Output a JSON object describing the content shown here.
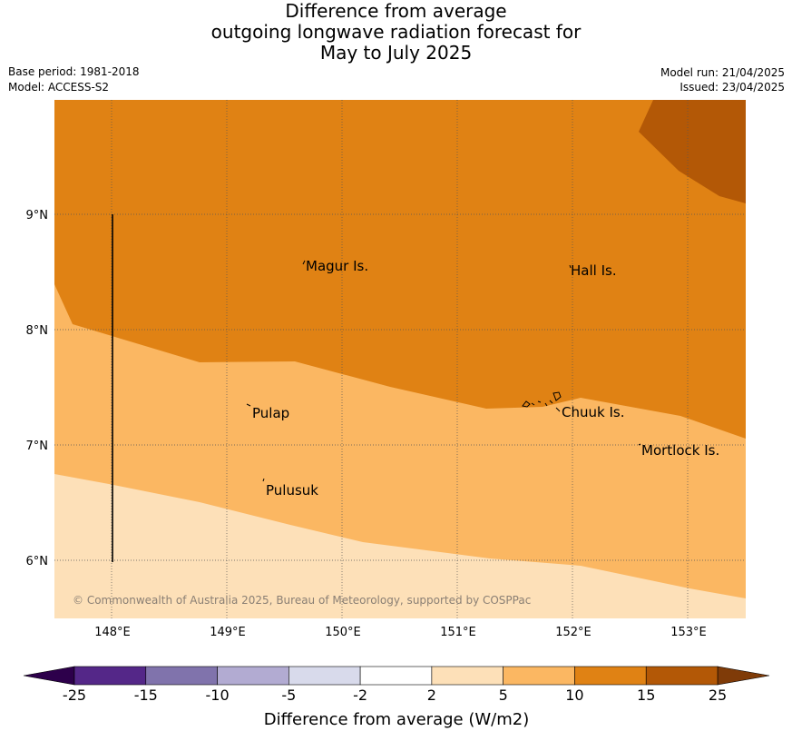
{
  "title": {
    "line1": "Difference from average",
    "line2": "outgoing longwave radiation forecast for",
    "line3": "May to July 2025"
  },
  "meta": {
    "base_period": "Base period: 1981-2018",
    "model": "Model: ACCESS-S2",
    "model_run": "Model run: 21/04/2025",
    "issued": "Issued: 23/04/2025"
  },
  "map": {
    "lat_labels": [
      "9°N",
      "8°N",
      "7°N",
      "6°N"
    ],
    "lon_labels": [
      "148°E",
      "149°E",
      "150°E",
      "151°E",
      "152°E",
      "153°E"
    ],
    "places": [
      {
        "name": "Magur Is."
      },
      {
        "name": "Hall Is."
      },
      {
        "name": "Pulap"
      },
      {
        "name": "Chuuk Is."
      },
      {
        "name": "Mortlock Is."
      },
      {
        "name": "Pulusuk"
      }
    ],
    "attribution": "© Commonwealth of Australia 2025, Bureau of Meteorology, supported by COSPPac",
    "colors": {
      "band_2_5": "#fde0b8",
      "band_5_10": "#fbb762",
      "band_10_15": "#e08214",
      "band_15_25": "#b35806"
    }
  },
  "colorbar": {
    "title": "Difference from average (W/m2)",
    "ticks": [
      "-25",
      "-15",
      "-10",
      "-5",
      "-2",
      "2",
      "5",
      "10",
      "15",
      "25"
    ],
    "colors": [
      "#542788",
      "#8073ac",
      "#b2abd2",
      "#d8daeb",
      "#ffffff",
      "#fde0b8",
      "#fbb762",
      "#e08214",
      "#b35806"
    ],
    "low_extend_color": "#2d004b",
    "high_extend_color": "#7f3b08"
  }
}
